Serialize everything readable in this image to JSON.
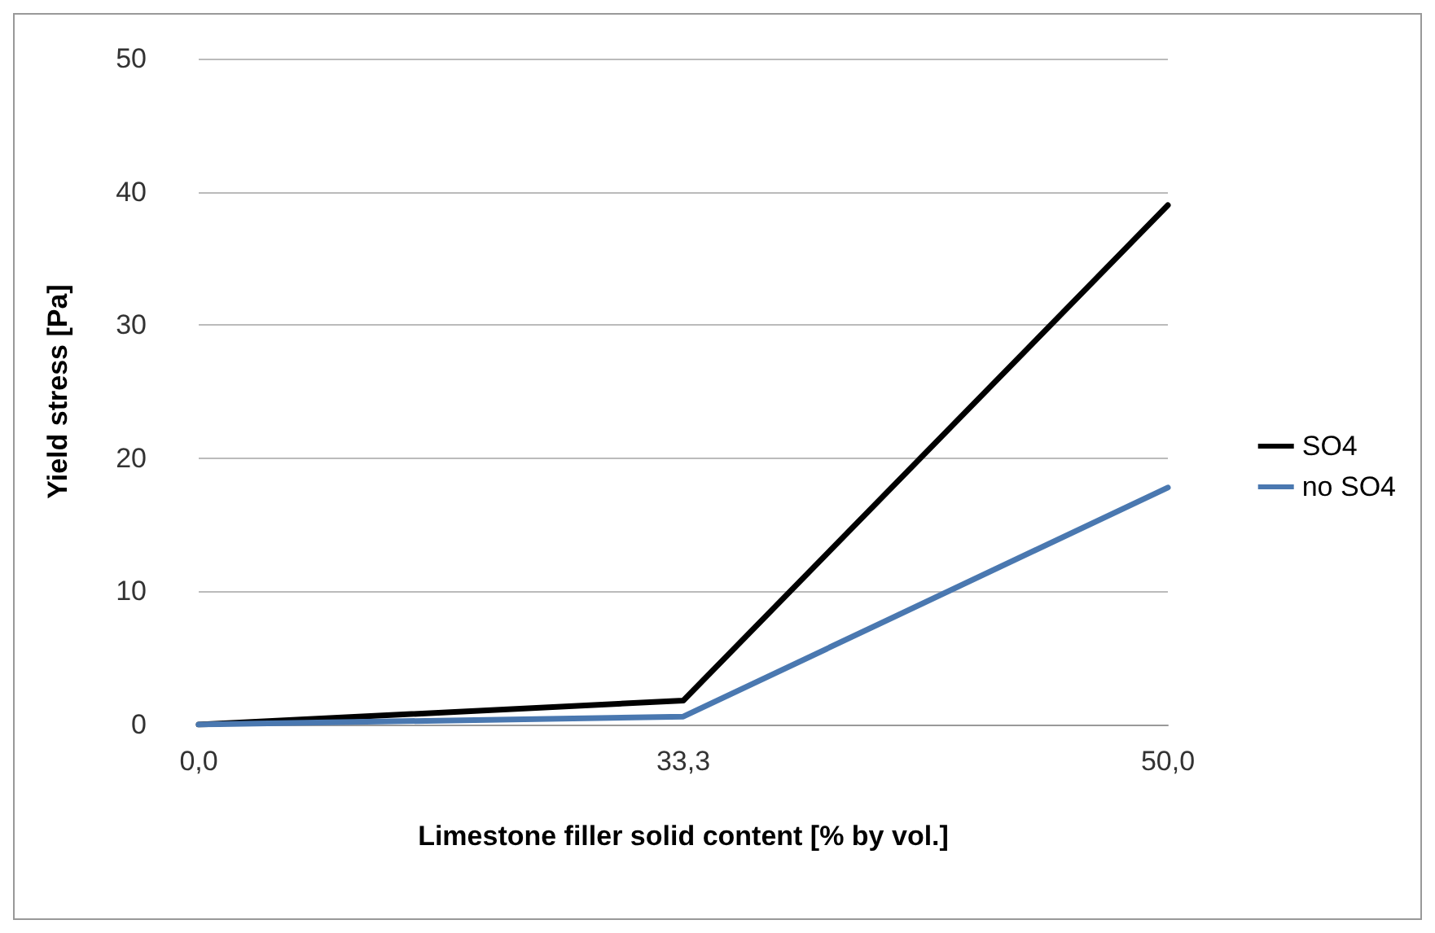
{
  "chart_data": {
    "type": "line",
    "xlabel": "Limestone filler solid content [% by vol.]",
    "ylabel": "Yield stress [Pa]",
    "categories": [
      "0,0",
      "33,3",
      "50,0"
    ],
    "series": [
      {
        "name": "SO4",
        "color": "#000000",
        "values": [
          0,
          1.8,
          39
        ]
      },
      {
        "name": "no SO4",
        "color": "#4a78b0",
        "values": [
          0,
          0.6,
          17.8
        ]
      }
    ],
    "ylim": [
      0,
      50
    ],
    "yticks": [
      0,
      10,
      20,
      30,
      40,
      50
    ],
    "grid": "y",
    "legend": "right",
    "marker": "none",
    "line_style": "solid"
  }
}
